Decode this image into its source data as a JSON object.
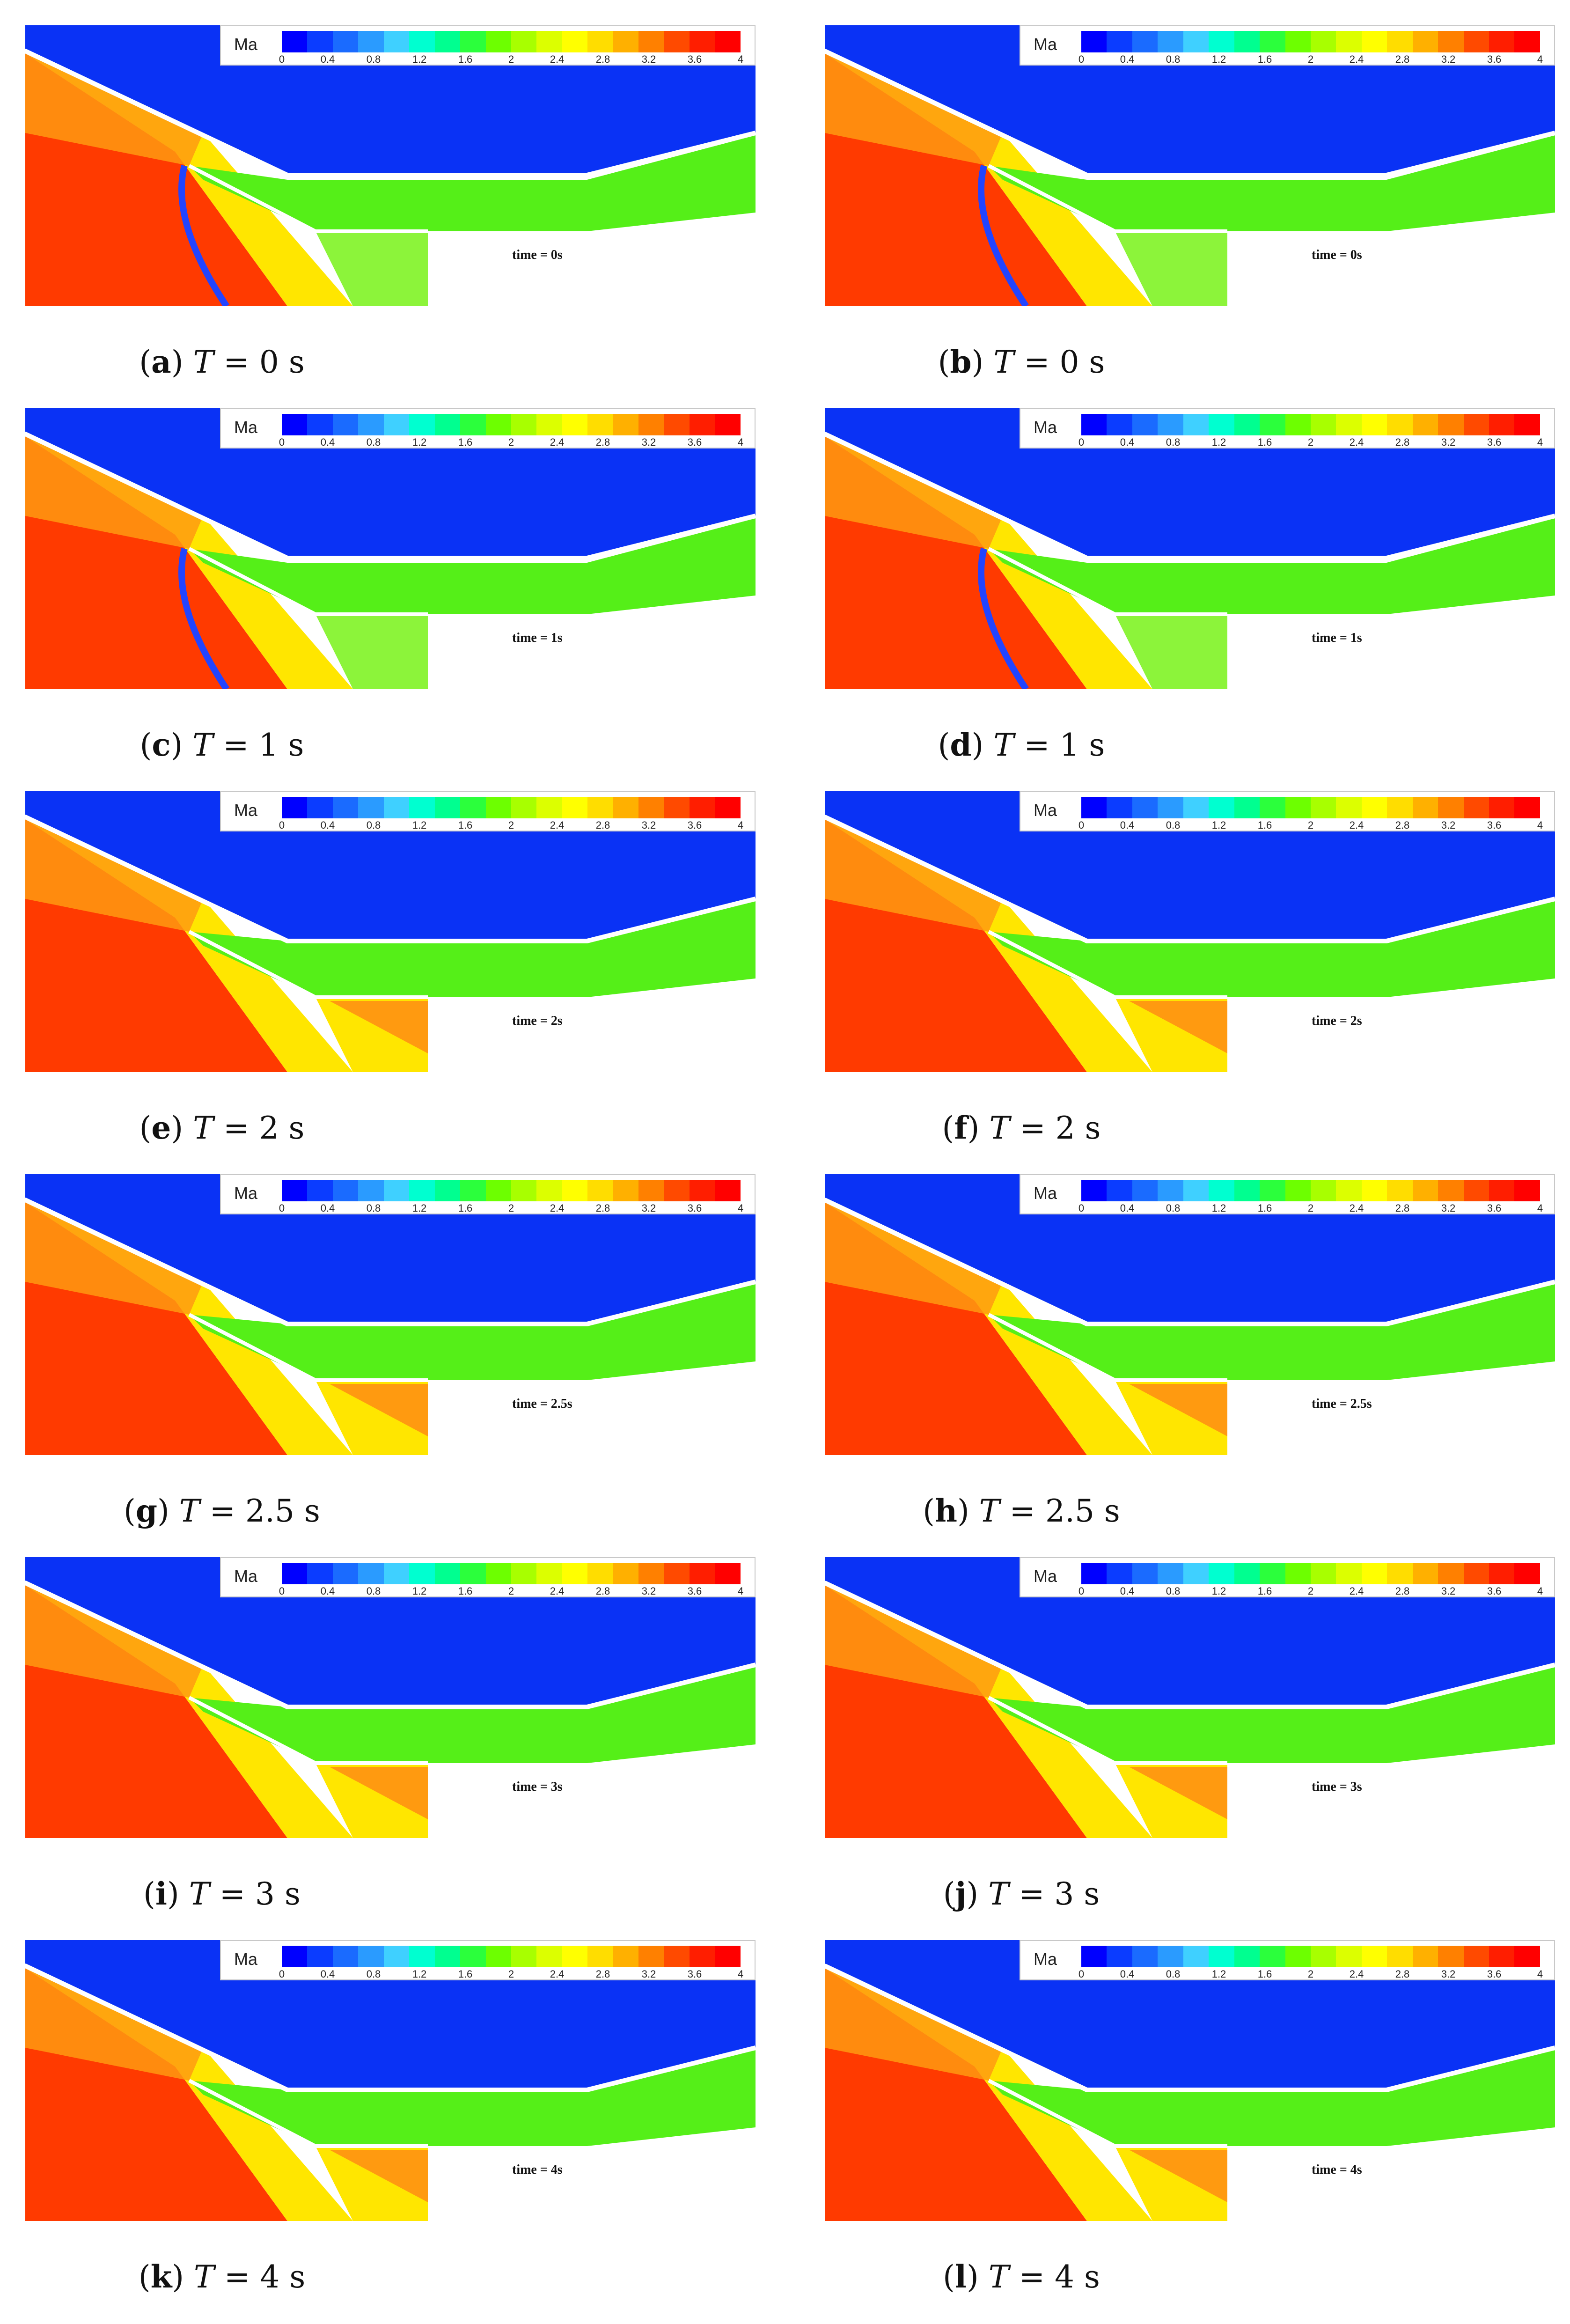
{
  "legend": {
    "variable": "Ma",
    "ticks": [
      "0",
      "0.4",
      "0.8",
      "1.2",
      "1.6",
      "2",
      "2.4",
      "2.8",
      "3.2",
      "3.6",
      "4"
    ],
    "levels": [
      "#0000ff",
      "#0b3cff",
      "#1a6bff",
      "#2a9bff",
      "#3fd0ff",
      "#00ffd0",
      "#00ff90",
      "#2bff3c",
      "#6dff00",
      "#a8ff00",
      "#dcff00",
      "#ffff00",
      "#ffdd00",
      "#ffb000",
      "#ff8000",
      "#ff4a00",
      "#ff1e00",
      "#ff0000"
    ]
  },
  "panels": [
    {
      "letter": "a",
      "time_label": "time = 0s",
      "caption_value": "0"
    },
    {
      "letter": "b",
      "time_label": "time = 0s",
      "caption_value": "0"
    },
    {
      "letter": "c",
      "time_label": "time = 1s",
      "caption_value": "1"
    },
    {
      "letter": "d",
      "time_label": "time = 1s",
      "caption_value": "1"
    },
    {
      "letter": "e",
      "time_label": "time = 2s",
      "caption_value": "2"
    },
    {
      "letter": "f",
      "time_label": "time = 2s",
      "caption_value": "2"
    },
    {
      "letter": "g",
      "time_label": "time = 2.5s",
      "caption_value": "2.5"
    },
    {
      "letter": "h",
      "time_label": "time = 2.5s",
      "caption_value": "2.5"
    },
    {
      "letter": "i",
      "time_label": "time = 3s",
      "caption_value": "3"
    },
    {
      "letter": "j",
      "time_label": "time = 3s",
      "caption_value": "3"
    },
    {
      "letter": "k",
      "time_label": "time = 4s",
      "caption_value": "4"
    },
    {
      "letter": "l",
      "time_label": "time = 4s",
      "caption_value": "4"
    }
  ],
  "caption_prefix": "T",
  "caption_unit": "s",
  "colors": {
    "freestream": "#ff3a00",
    "compressed": "#ffe600",
    "inner": "#ff9a10",
    "duct": "#55ef18",
    "duct_light": "#8cf43a",
    "outer": "#0a32f5",
    "wall": "#ffffff"
  }
}
